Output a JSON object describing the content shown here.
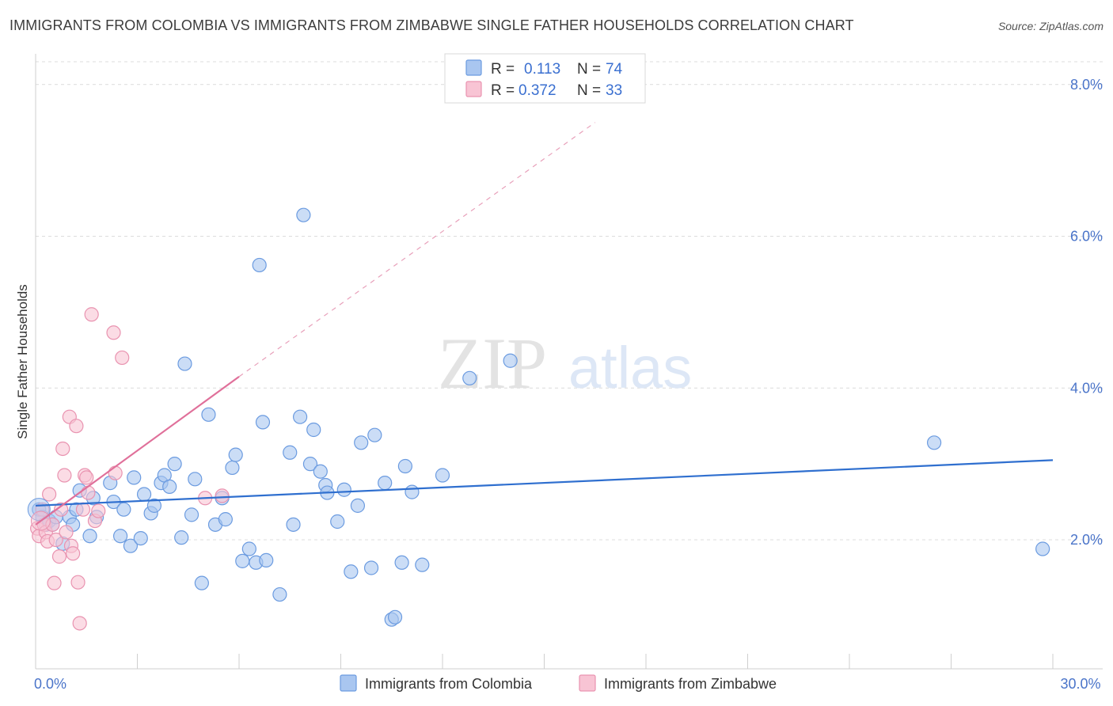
{
  "title": "IMMIGRANTS FROM COLOMBIA VS IMMIGRANTS FROM ZIMBABWE SINGLE FATHER HOUSEHOLDS CORRELATION CHART",
  "source": "Source: ZipAtlas.com",
  "watermark": {
    "zip": "ZIP",
    "atlas": "atlas"
  },
  "legend_top": [
    {
      "r_label": "R =",
      "r_value": "0.113",
      "n_label": "N =",
      "n_value": "74",
      "color": "#a9c6f0",
      "stroke": "#6b9be0"
    },
    {
      "r_label": "R =",
      "r_value": "0.372",
      "n_label": "N =",
      "n_value": "33",
      "color": "#f8c4d4",
      "stroke": "#e993b0"
    }
  ],
  "chart_data": {
    "type": "scatter",
    "title": "IMMIGRANTS FROM COLOMBIA VS IMMIGRANTS FROM ZIMBABWE SINGLE FATHER HOUSEHOLDS CORRELATION CHART",
    "xlabel": "",
    "ylabel": "Single Father Households",
    "xlim": [
      0,
      30
    ],
    "ylim": [
      0.3,
      8.3
    ],
    "x_ticks": [
      {
        "value": 0,
        "label": "0.0%"
      },
      {
        "value": 30,
        "label": "30.0%"
      }
    ],
    "y_ticks": [
      {
        "value": 2,
        "label": "2.0%"
      },
      {
        "value": 4,
        "label": "4.0%"
      },
      {
        "value": 6,
        "label": "6.0%"
      },
      {
        "value": 8,
        "label": "8.0%"
      }
    ],
    "series": [
      {
        "name": "Immigrants from Colombia",
        "color": "#a9c6f0",
        "stroke": "#6b9be0",
        "trend": {
          "x0": 0,
          "y0": 2.45,
          "x1": 30,
          "y1": 3.05,
          "color": "#2f6fcf"
        },
        "points": [
          [
            0.1,
            2.4
          ],
          [
            0.2,
            2.3
          ],
          [
            0.3,
            2.2
          ],
          [
            0.4,
            2.25
          ],
          [
            0.5,
            2.2
          ],
          [
            0.6,
            2.3
          ],
          [
            0.8,
            1.95
          ],
          [
            1.0,
            2.3
          ],
          [
            1.1,
            2.2
          ],
          [
            1.2,
            2.4
          ],
          [
            1.3,
            2.65
          ],
          [
            1.6,
            2.05
          ],
          [
            1.7,
            2.55
          ],
          [
            1.8,
            2.3
          ],
          [
            2.2,
            2.75
          ],
          [
            2.3,
            2.5
          ],
          [
            2.5,
            2.05
          ],
          [
            2.6,
            2.4
          ],
          [
            2.8,
            1.92
          ],
          [
            2.9,
            2.82
          ],
          [
            3.1,
            2.02
          ],
          [
            3.2,
            2.6
          ],
          [
            3.4,
            2.35
          ],
          [
            3.5,
            2.45
          ],
          [
            3.7,
            2.75
          ],
          [
            3.8,
            2.85
          ],
          [
            3.95,
            2.7
          ],
          [
            4.1,
            3.0
          ],
          [
            4.3,
            2.03
          ],
          [
            4.4,
            4.32
          ],
          [
            4.6,
            2.33
          ],
          [
            4.7,
            2.8
          ],
          [
            4.9,
            1.43
          ],
          [
            5.1,
            3.65
          ],
          [
            5.3,
            2.2
          ],
          [
            5.5,
            2.55
          ],
          [
            5.6,
            2.27
          ],
          [
            5.8,
            2.95
          ],
          [
            5.9,
            3.12
          ],
          [
            6.1,
            1.72
          ],
          [
            6.3,
            1.88
          ],
          [
            6.5,
            1.7
          ],
          [
            6.6,
            5.62
          ],
          [
            6.7,
            3.55
          ],
          [
            6.8,
            1.73
          ],
          [
            7.2,
            1.28
          ],
          [
            7.5,
            3.15
          ],
          [
            7.6,
            2.2
          ],
          [
            7.8,
            3.62
          ],
          [
            7.9,
            6.28
          ],
          [
            8.1,
            3.0
          ],
          [
            8.2,
            3.45
          ],
          [
            8.4,
            2.9
          ],
          [
            8.55,
            2.72
          ],
          [
            8.6,
            2.62
          ],
          [
            8.9,
            2.24
          ],
          [
            9.1,
            2.66
          ],
          [
            9.3,
            1.58
          ],
          [
            9.5,
            2.45
          ],
          [
            9.6,
            3.28
          ],
          [
            9.9,
            1.63
          ],
          [
            10.0,
            3.38
          ],
          [
            10.3,
            2.75
          ],
          [
            10.5,
            0.95
          ],
          [
            10.6,
            0.98
          ],
          [
            10.8,
            1.7
          ],
          [
            10.9,
            2.97
          ],
          [
            11.1,
            2.63
          ],
          [
            11.4,
            1.67
          ],
          [
            12.0,
            2.85
          ],
          [
            12.8,
            4.13
          ],
          [
            14.0,
            4.36
          ],
          [
            26.5,
            3.28
          ],
          [
            29.7,
            1.88
          ]
        ]
      },
      {
        "name": "Immigrants from Zimbabwe",
        "color": "#f8c4d4",
        "stroke": "#e993b0",
        "trend": {
          "x0": 0,
          "y0": 2.2,
          "x1": 6.0,
          "y1": 4.15,
          "color": "#e0709a"
        },
        "trend_dashed": {
          "x0": 6.0,
          "y0": 4.15,
          "x1": 16.5,
          "y1": 7.5,
          "color": "#e8a0ba"
        },
        "points": [
          [
            0.05,
            2.15
          ],
          [
            0.1,
            2.05
          ],
          [
            0.2,
            2.4
          ],
          [
            0.25,
            2.2
          ],
          [
            0.3,
            2.1
          ],
          [
            0.35,
            1.98
          ],
          [
            0.4,
            2.6
          ],
          [
            0.5,
            2.2
          ],
          [
            0.55,
            1.43
          ],
          [
            0.6,
            2.0
          ],
          [
            0.7,
            1.78
          ],
          [
            0.75,
            2.4
          ],
          [
            0.8,
            3.2
          ],
          [
            0.85,
            2.85
          ],
          [
            0.9,
            2.1
          ],
          [
            1.0,
            3.62
          ],
          [
            1.05,
            1.92
          ],
          [
            1.1,
            1.82
          ],
          [
            1.2,
            3.5
          ],
          [
            1.25,
            1.44
          ],
          [
            1.3,
            0.9
          ],
          [
            1.4,
            2.4
          ],
          [
            1.45,
            2.85
          ],
          [
            1.5,
            2.82
          ],
          [
            1.55,
            2.62
          ],
          [
            1.65,
            4.97
          ],
          [
            1.75,
            2.25
          ],
          [
            1.85,
            2.38
          ],
          [
            2.3,
            4.73
          ],
          [
            2.35,
            2.88
          ],
          [
            2.55,
            4.4
          ],
          [
            5.5,
            2.58
          ],
          [
            5.0,
            2.55
          ]
        ]
      }
    ]
  },
  "legend_bottom": [
    {
      "label": "Immigrants from Colombia",
      "color": "#a9c6f0",
      "stroke": "#6b9be0"
    },
    {
      "label": "Immigrants from Zimbabwe",
      "color": "#f8c4d4",
      "stroke": "#e993b0"
    }
  ]
}
